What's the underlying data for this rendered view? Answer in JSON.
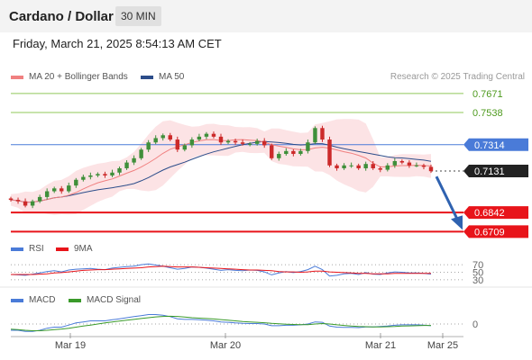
{
  "header": {
    "title": "Cardano / Dollar",
    "timeframe": "30 MIN"
  },
  "datetime": "Friday, March 21, 2025 8:54:13 AM CET",
  "credit": "Research © 2025 Trading Central",
  "legend": {
    "ma20": "MA 20 + Bollinger Bands",
    "ma50": "MA 50",
    "rsi": "RSI",
    "rsi9": "9MA",
    "macd": "MACD",
    "macd_signal": "MACD Signal"
  },
  "colors": {
    "ma20": "#f08080",
    "ma50": "#2c4d8a",
    "resistance": "#8fc85a",
    "pivot": "#4a7bd8",
    "support": "#e8141a",
    "current": "#222222",
    "candle_up": "#3f8f3a",
    "candle_down": "#cc2a2a",
    "arrow": "#2f62b0"
  },
  "chart_data": {
    "type": "candlestick",
    "x_ticks": [
      "Mar 19",
      "Mar 20",
      "Mar 21",
      "Mar 25"
    ],
    "y_range": [
      0.668,
      0.772
    ],
    "levels": [
      {
        "value": "0.7671",
        "kind": "resistance"
      },
      {
        "value": "0.7538",
        "kind": "resistance"
      },
      {
        "value": "0.7314",
        "kind": "pivot"
      },
      {
        "value": "0.7131",
        "kind": "current"
      },
      {
        "value": "0.6842",
        "kind": "support"
      },
      {
        "value": "0.6709",
        "kind": "support"
      }
    ],
    "forecast_target": 0.6709,
    "close": [
      0.693,
      0.692,
      0.689,
      0.692,
      0.695,
      0.699,
      0.701,
      0.699,
      0.703,
      0.707,
      0.709,
      0.71,
      0.711,
      0.71,
      0.712,
      0.715,
      0.719,
      0.722,
      0.728,
      0.733,
      0.736,
      0.738,
      0.735,
      0.728,
      0.731,
      0.735,
      0.737,
      0.739,
      0.737,
      0.733,
      0.734,
      0.733,
      0.732,
      0.732,
      0.734,
      0.731,
      0.722,
      0.725,
      0.727,
      0.725,
      0.727,
      0.733,
      0.743,
      0.735,
      0.717,
      0.715,
      0.717,
      0.717,
      0.715,
      0.718,
      0.715,
      0.714,
      0.717,
      0.72,
      0.719,
      0.717,
      0.717,
      0.716,
      0.713
    ],
    "rsi": {
      "levels": [
        "70",
        "50",
        "30"
      ],
      "range": [
        25,
        75
      ],
      "values": [
        44,
        43,
        42,
        45,
        48,
        52,
        54,
        51,
        56,
        58,
        59,
        60,
        58,
        57,
        61,
        63,
        65,
        66,
        70,
        72,
        69,
        66,
        62,
        58,
        60,
        64,
        63,
        61,
        58,
        55,
        57,
        55,
        54,
        56,
        55,
        51,
        43,
        48,
        52,
        49,
        52,
        57,
        66,
        57,
        40,
        42,
        46,
        47,
        44,
        49,
        45,
        44,
        48,
        51,
        50,
        48,
        48,
        47,
        45
      ]
    },
    "rsi9": [
      44,
      44,
      44,
      44,
      45,
      46,
      48,
      49,
      51,
      53,
      55,
      56,
      57,
      57,
      58,
      59,
      60,
      61,
      62,
      64,
      65,
      66,
      65,
      64,
      64,
      64,
      63,
      62,
      61,
      60,
      59,
      58,
      57,
      56,
      56,
      55,
      54,
      52,
      51,
      51,
      50,
      51,
      53,
      53,
      51,
      50,
      49,
      48,
      47,
      47,
      46,
      46,
      46,
      47,
      47,
      47,
      47,
      47,
      47
    ],
    "macd": {
      "levels": [
        "0"
      ],
      "range": [
        -0.006,
        0.006
      ],
      "values": [
        -0.003,
        -0.003,
        -0.0035,
        -0.0035,
        -0.003,
        -0.002,
        -0.0015,
        -0.0015,
        -0.0005,
        0.0005,
        0.001,
        0.0015,
        0.0015,
        0.0015,
        0.002,
        0.0025,
        0.003,
        0.0035,
        0.004,
        0.0045,
        0.0045,
        0.0042,
        0.0035,
        0.0025,
        0.0022,
        0.0022,
        0.002,
        0.0018,
        0.0015,
        0.001,
        0.0008,
        0.0005,
        0.0003,
        0.0002,
        0.0002,
        0.0,
        -0.0008,
        -0.0008,
        -0.0006,
        -0.0006,
        -0.0004,
        0.0,
        0.001,
        0.0008,
        -0.001,
        -0.0015,
        -0.0016,
        -0.0016,
        -0.0017,
        -0.0014,
        -0.0014,
        -0.0012,
        -0.001,
        -0.0006,
        -0.0004,
        -0.0004,
        -0.0004,
        -0.0005,
        -0.0008
      ]
    },
    "macd_signal": [
      -0.0025,
      -0.0027,
      -0.003,
      -0.0032,
      -0.0032,
      -0.003,
      -0.0027,
      -0.0024,
      -0.002,
      -0.0015,
      -0.001,
      -0.0005,
      0.0,
      0.0005,
      0.001,
      0.0014,
      0.0018,
      0.0022,
      0.0026,
      0.003,
      0.0034,
      0.0036,
      0.0037,
      0.0036,
      0.0033,
      0.003,
      0.0028,
      0.0026,
      0.0024,
      0.0021,
      0.0018,
      0.0015,
      0.0012,
      0.001,
      0.0008,
      0.0006,
      0.0003,
      0.0001,
      -0.0001,
      -0.0002,
      -0.0003,
      -0.0003,
      0.0,
      0.0002,
      0.0,
      -0.0004,
      -0.0007,
      -0.001,
      -0.0012,
      -0.0013,
      -0.0014,
      -0.0014,
      -0.0013,
      -0.0012,
      -0.001,
      -0.0009,
      -0.0008,
      -0.0007,
      -0.0007
    ]
  }
}
